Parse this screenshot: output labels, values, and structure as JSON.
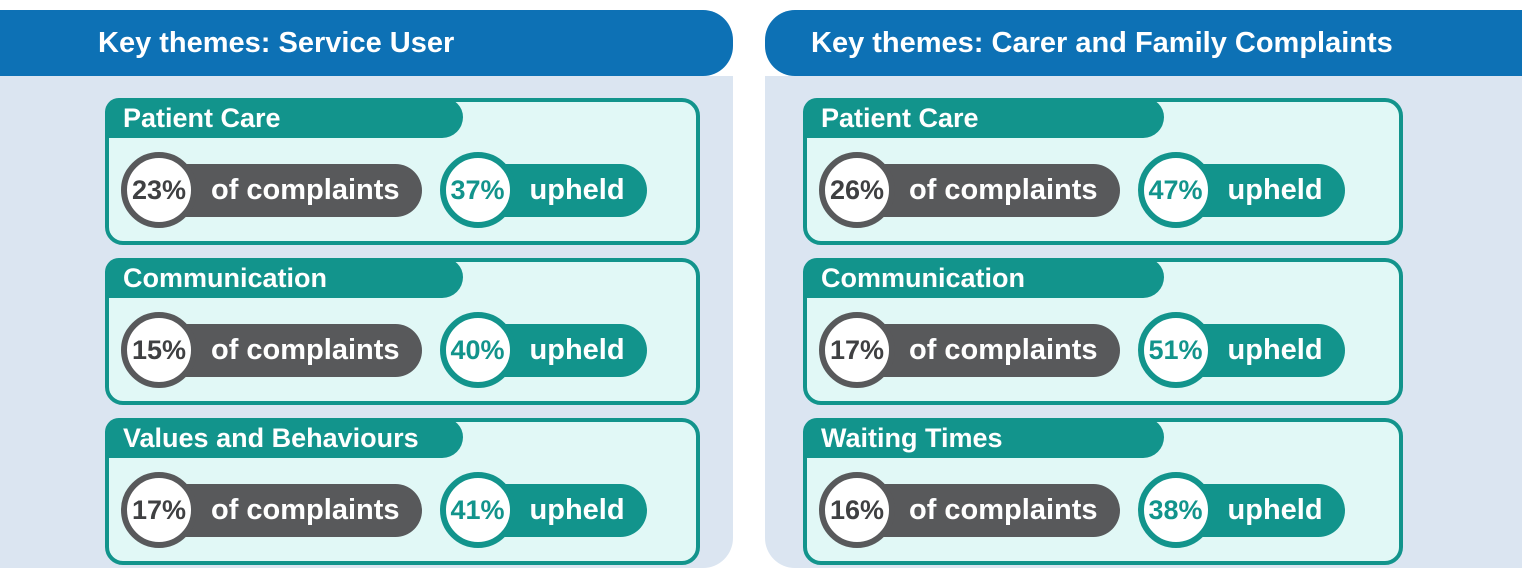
{
  "colors": {
    "blue": "#0D71B5",
    "panel_bg": "#DBE5F1",
    "card_bg": "#E1F8F6",
    "teal": "#12948C",
    "gray": "#58595B",
    "dark_text": "#3F4042",
    "white": "#FFFFFF"
  },
  "panels": [
    {
      "title": "Key themes: Service User",
      "cards": [
        {
          "theme": "Patient Care",
          "complaints_pct": "23%",
          "complaints_label": "of complaints",
          "upheld_pct": "37%",
          "upheld_label": "upheld"
        },
        {
          "theme": "Communication",
          "complaints_pct": "15%",
          "complaints_label": "of complaints",
          "upheld_pct": "40%",
          "upheld_label": "upheld"
        },
        {
          "theme": "Values and Behaviours",
          "complaints_pct": "17%",
          "complaints_label": "of complaints",
          "upheld_pct": "41%",
          "upheld_label": "upheld"
        }
      ]
    },
    {
      "title": "Key themes: Carer and Family Complaints",
      "cards": [
        {
          "theme": "Patient Care",
          "complaints_pct": "26%",
          "complaints_label": "of complaints",
          "upheld_pct": "47%",
          "upheld_label": "upheld"
        },
        {
          "theme": "Communication",
          "complaints_pct": "17%",
          "complaints_label": "of complaints",
          "upheld_pct": "51%",
          "upheld_label": "upheld"
        },
        {
          "theme": "Waiting Times",
          "complaints_pct": "16%",
          "complaints_label": "of complaints",
          "upheld_pct": "38%",
          "upheld_label": "upheld"
        }
      ]
    }
  ],
  "chart_data": [
    {
      "type": "table",
      "title": "Key themes: Service User",
      "columns": [
        "Theme",
        "% of complaints",
        "% upheld"
      ],
      "rows": [
        [
          "Patient Care",
          23,
          37
        ],
        [
          "Communication",
          15,
          40
        ],
        [
          "Values and Behaviours",
          17,
          41
        ]
      ]
    },
    {
      "type": "table",
      "title": "Key themes: Carer and Family Complaints",
      "columns": [
        "Theme",
        "% of complaints",
        "% upheld"
      ],
      "rows": [
        [
          "Patient Care",
          26,
          47
        ],
        [
          "Communication",
          17,
          51
        ],
        [
          "Waiting Times",
          16,
          38
        ]
      ]
    }
  ]
}
